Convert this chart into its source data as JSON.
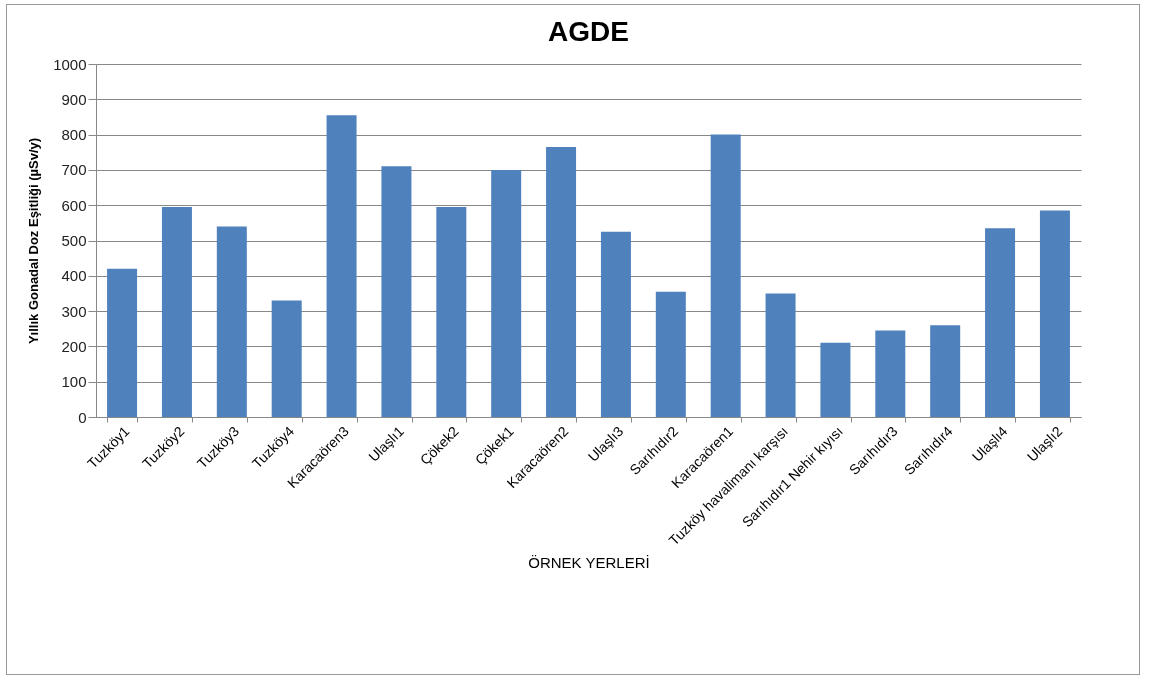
{
  "chart_data": {
    "type": "bar",
    "title": "AGDE",
    "xlabel": "ÖRNEK YERLERİ",
    "ylabel": "Yıllık Gonadal Doz Eşitliği (µSv/y)",
    "categories": [
      "Tuzköy1",
      "Tuzköy2",
      "Tuzköy3",
      "Tuzköy4",
      "Karacaören3",
      "Ulaşlı1",
      "Çökek2",
      "Çökek1",
      "Karacaören2",
      "Ulaşlı3",
      "Sarıhıdır2",
      "Karacaören1",
      "Tuzköy havalimanı karşısı",
      "Sarıhıdır1 Nehir kıyısı",
      "Sarıhıdır3",
      "Sarıhıdır4",
      "Ulaşlı4",
      "Ulaşlı2"
    ],
    "values": [
      420,
      595,
      540,
      330,
      855,
      710,
      595,
      700,
      765,
      525,
      355,
      800,
      350,
      210,
      245,
      260,
      535,
      585
    ],
    "color": "#4f81bd",
    "ylim": [
      0,
      1000
    ],
    "yticks": [
      0,
      100,
      200,
      300,
      400,
      500,
      600,
      700,
      800,
      900,
      1000
    ],
    "grid": "y"
  }
}
